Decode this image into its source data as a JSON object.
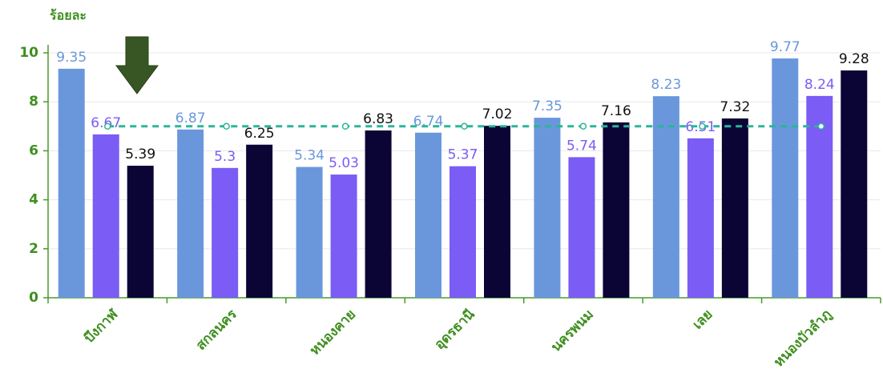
{
  "chart_data": {
    "type": "bar",
    "y_label": "ร้อยละ",
    "categories": [
      "บึงกาฬ",
      "สกลนคร",
      "หนองคาย",
      "อุดรธานี",
      "นครพนม",
      "เลย",
      "หนองบัวลำภู"
    ],
    "series": [
      {
        "type": "bar",
        "color": "#6a97dc",
        "label_color": "#6a97dc",
        "values": [
          9.35,
          6.87,
          5.34,
          6.74,
          7.35,
          8.23,
          9.77
        ]
      },
      {
        "type": "bar",
        "color": "#7b5cf5",
        "label_color": "#7b5cf5",
        "values": [
          6.67,
          5.3,
          5.03,
          5.37,
          5.74,
          6.51,
          8.24
        ]
      },
      {
        "type": "bar",
        "color": "#0b0536",
        "label_color": "#111111",
        "values": [
          5.39,
          6.25,
          6.83,
          7.02,
          7.16,
          7.32,
          9.28
        ]
      },
      {
        "type": "line",
        "color": "#2bb59a",
        "dashed": true,
        "values": [
          7,
          7,
          7,
          7,
          7,
          7,
          7
        ]
      }
    ],
    "ylim": [
      0,
      10
    ],
    "yticks": [
      0,
      2,
      4,
      6,
      8,
      10
    ],
    "grid": true
  }
}
